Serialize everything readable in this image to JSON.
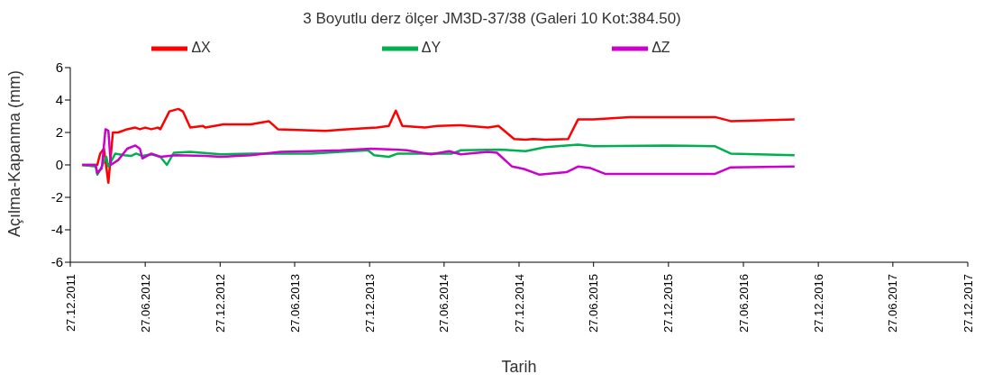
{
  "chart_data": {
    "type": "line",
    "title": "3 Boyutlu derz ölçer JM3D-37/38 (Galeri 10 Kot:384.50)",
    "xlabel": "Tarih",
    "ylabel": "Açılma-Kapanma (mm)",
    "legend": "top",
    "grid": false,
    "xlim": [
      "2011-12-27",
      "2017-12-27"
    ],
    "xticks": [
      {
        "value": "2011-12-27",
        "label": "27.12.2011"
      },
      {
        "value": "2012-06-27",
        "label": "27.06.2012"
      },
      {
        "value": "2012-12-27",
        "label": "27.12.2012"
      },
      {
        "value": "2013-06-27",
        "label": "27.06.2013"
      },
      {
        "value": "2013-12-27",
        "label": "27.12.2013"
      },
      {
        "value": "2014-06-27",
        "label": "27.06.2014"
      },
      {
        "value": "2014-12-27",
        "label": "27.12.2014"
      },
      {
        "value": "2015-06-27",
        "label": "27.06.2015"
      },
      {
        "value": "2015-12-27",
        "label": "27.12.2015"
      },
      {
        "value": "2016-06-27",
        "label": "27.06.2016"
      },
      {
        "value": "2016-12-27",
        "label": "27.12.2016"
      },
      {
        "value": "2017-06-27",
        "label": "27.06.2017"
      },
      {
        "value": "2017-12-27",
        "label": "27.12.2017"
      }
    ],
    "ylim": [
      -6,
      6
    ],
    "yticks": [
      -6,
      -4,
      -2,
      0,
      2,
      4,
      6
    ],
    "series": [
      {
        "name": "ΔX",
        "color": "#ff0000",
        "x": [
          "2012-01-25",
          "2012-03-02",
          "2012-03-09",
          "2012-03-18",
          "2012-03-29",
          "2012-04-09",
          "2012-04-22",
          "2012-05-14",
          "2012-06-03",
          "2012-06-14",
          "2012-06-27",
          "2012-07-12",
          "2012-07-28",
          "2012-08-03",
          "2012-08-25",
          "2012-09-16",
          "2012-09-27",
          "2012-10-15",
          "2012-11-15",
          "2012-11-21",
          "2013-01-04",
          "2013-03-12",
          "2013-04-25",
          "2013-05-17",
          "2013-09-10",
          "2013-11-02",
          "2014-01-14",
          "2014-02-12",
          "2014-03-01",
          "2014-03-17",
          "2014-05-11",
          "2014-06-11",
          "2014-08-07",
          "2014-10-12",
          "2014-11-07",
          "2014-12-15",
          "2015-01-12",
          "2015-01-30",
          "2015-03-02",
          "2015-04-26",
          "2015-05-20",
          "2015-06-27",
          "2015-09-23",
          "2015-12-20",
          "2016-04-19",
          "2016-05-27",
          "2016-10-30"
        ],
        "values": [
          0,
          0,
          0.7,
          1.0,
          -1.1,
          2.0,
          2.0,
          2.2,
          2.3,
          2.2,
          2.3,
          2.2,
          2.3,
          2.2,
          3.3,
          3.45,
          3.3,
          2.3,
          2.4,
          2.3,
          2.5,
          2.5,
          2.7,
          2.2,
          2.1,
          2.2,
          2.3,
          2.4,
          3.35,
          2.4,
          2.3,
          2.4,
          2.45,
          2.3,
          2.4,
          1.6,
          1.55,
          1.6,
          1.55,
          1.6,
          2.8,
          2.8,
          2.95,
          2.95,
          2.95,
          2.7,
          2.8
        ]
      },
      {
        "name": "ΔY",
        "color": "#00b050",
        "x": [
          "2012-01-25",
          "2012-02-27",
          "2012-03-02",
          "2012-03-09",
          "2012-03-24",
          "2012-03-29",
          "2012-04-15",
          "2012-05-07",
          "2012-05-23",
          "2012-06-05",
          "2012-06-20",
          "2012-07-12",
          "2012-08-03",
          "2012-08-19",
          "2012-09-05",
          "2012-10-15",
          "2012-12-29",
          "2013-03-12",
          "2013-05-23",
          "2013-08-06",
          "2013-10-18",
          "2013-12-23",
          "2014-01-07",
          "2014-02-12",
          "2014-03-06",
          "2014-07-16",
          "2014-08-07",
          "2014-11-12",
          "2015-01-12",
          "2015-03-02",
          "2015-05-20",
          "2015-06-27",
          "2015-12-20",
          "2016-04-19",
          "2016-05-27",
          "2016-10-30"
        ],
        "values": [
          0,
          -0.1,
          -0.6,
          -0.3,
          0.5,
          -0.1,
          0.7,
          0.6,
          0.55,
          0.7,
          0.55,
          0.65,
          0.5,
          0.0,
          0.75,
          0.8,
          0.65,
          0.7,
          0.7,
          0.7,
          0.8,
          0.9,
          0.6,
          0.5,
          0.7,
          0.7,
          0.9,
          0.95,
          0.85,
          1.1,
          1.25,
          1.15,
          1.2,
          1.15,
          0.7,
          0.6
        ]
      },
      {
        "name": "ΔZ",
        "color": "#cc00cc",
        "x": [
          "2012-01-25",
          "2012-02-27",
          "2012-03-02",
          "2012-03-13",
          "2012-03-22",
          "2012-03-29",
          "2012-04-04",
          "2012-04-22",
          "2012-05-14",
          "2012-06-03",
          "2012-06-14",
          "2012-06-20",
          "2012-07-12",
          "2012-08-03",
          "2012-09-10",
          "2012-11-21",
          "2012-12-29",
          "2013-03-12",
          "2013-05-23",
          "2013-08-06",
          "2013-10-18",
          "2013-12-30",
          "2014-02-27",
          "2014-03-28",
          "2014-05-26",
          "2014-07-09",
          "2014-08-07",
          "2014-10-12",
          "2014-11-03",
          "2014-12-10",
          "2015-01-08",
          "2015-02-15",
          "2015-04-22",
          "2015-05-20",
          "2015-06-20",
          "2015-07-25",
          "2015-12-20",
          "2016-04-19",
          "2016-05-27",
          "2016-10-30"
        ],
        "values": [
          0,
          0,
          -0.5,
          -0.2,
          2.2,
          2.1,
          0.0,
          0.3,
          1.0,
          1.2,
          1.0,
          0.4,
          0.7,
          0.5,
          0.6,
          0.55,
          0.5,
          0.6,
          0.8,
          0.85,
          0.9,
          1.0,
          0.95,
          0.9,
          0.65,
          0.85,
          0.65,
          0.8,
          0.75,
          -0.1,
          -0.25,
          -0.6,
          -0.45,
          -0.1,
          -0.2,
          -0.55,
          -0.55,
          -0.55,
          -0.15,
          -0.1
        ]
      }
    ]
  }
}
